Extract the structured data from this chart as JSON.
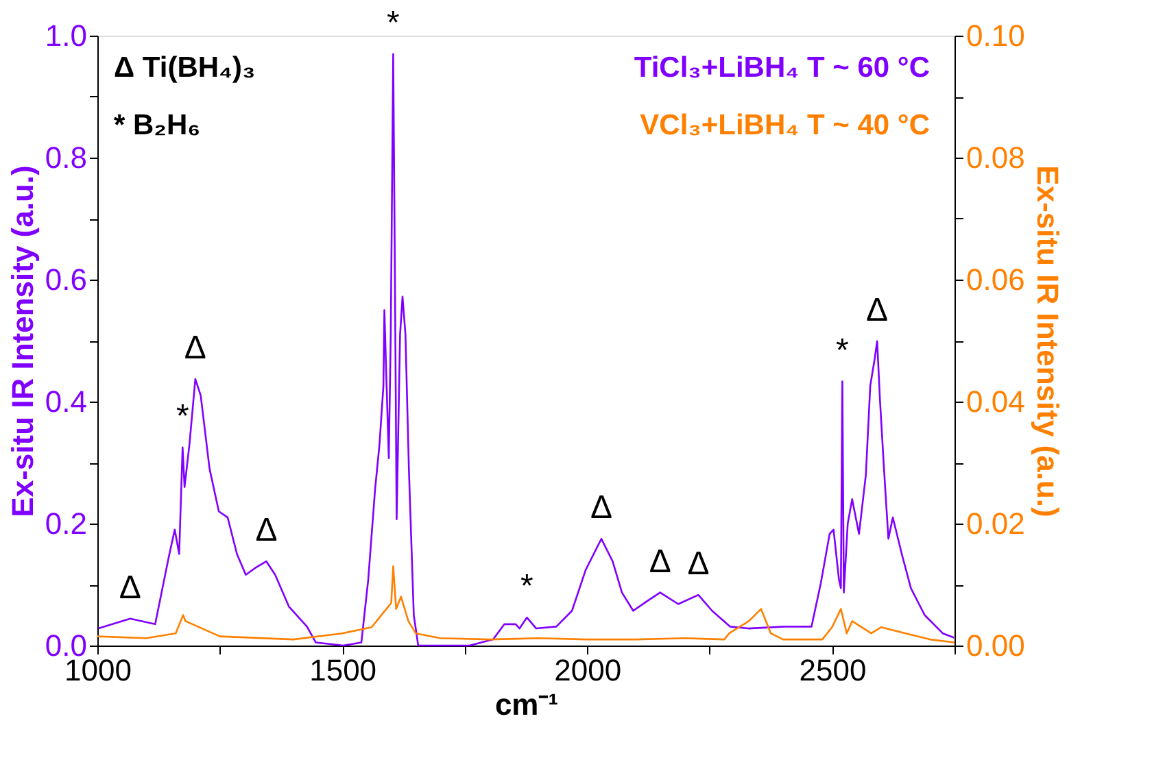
{
  "chart_data": {
    "type": "line",
    "xlabel": "cm⁻¹",
    "ylabel": "Ex-situ IR Intensity (a.u.)",
    "y2label": "Ex-situ IR Intensity (a.u.)",
    "xlim": [
      1000,
      2750
    ],
    "xticks": [
      1000,
      {
        "value": 1250,
        "label": null
      },
      1500,
      {
        "value": 1750,
        "label": null
      },
      2000,
      {
        "value": 2250,
        "label": null
      },
      2500,
      {
        "value": 2750,
        "label": null
      }
    ],
    "ylim": [
      0,
      1.0
    ],
    "yticks": [
      {
        "value": 0,
        "label": "0.0"
      },
      {
        "value": 0.1,
        "label": null
      },
      0.2,
      {
        "value": 0.3,
        "label": null
      },
      0.4,
      {
        "value": 0.5,
        "label": null
      },
      0.6,
      {
        "value": 0.7,
        "label": null
      },
      0.8,
      {
        "value": 0.9,
        "label": null
      },
      {
        "value": 1.0,
        "label": "1.0"
      }
    ],
    "y2lim": [
      0,
      0.1
    ],
    "y2ticks": [
      {
        "value": 0,
        "label": "0.00"
      },
      {
        "value": 0.01,
        "label": null
      },
      0.02,
      {
        "value": 0.03,
        "label": null
      },
      0.04,
      {
        "value": 0.05,
        "label": null
      },
      0.06,
      {
        "value": 0.07,
        "label": null
      },
      0.08,
      {
        "value": 0.09,
        "label": null
      },
      {
        "value": 0.1,
        "label": "0.10"
      }
    ],
    "legend": "top right",
    "grid": false,
    "series": [
      {
        "name": "TiCl₃+LiBH₄ T ~ 60 °C",
        "color": "#8000ff",
        "x": [
          1002,
          1067,
          1118,
          1146,
          1158,
          1167,
          1174,
          1178,
          1188,
          1200,
          1211,
          1229,
          1248,
          1266,
          1285,
          1303,
          1322,
          1345,
          1363,
          1391,
          1428,
          1446,
          1502,
          1539,
          1553,
          1567,
          1576,
          1584,
          1586,
          1590,
          1595,
          1599,
          1604,
          1607,
          1611,
          1618,
          1623,
          1629,
          1636,
          1646,
          1655,
          1700,
          1760,
          1808,
          1831,
          1854,
          1862,
          1877,
          1896,
          1937,
          1969,
          1997,
          2029,
          2052,
          2071,
          2094,
          2121,
          2149,
          2186,
          2227,
          2255,
          2292,
          2329,
          2403,
          2458,
          2477,
          2495,
          2503,
          2514,
          2518,
          2521,
          2524,
          2532,
          2541,
          2555,
          2569,
          2578,
          2587,
          2592,
          2598,
          2606,
          2615,
          2624,
          2643,
          2661,
          2689,
          2726,
          2749
        ],
        "values": [
          0.028,
          0.044,
          0.035,
          0.146,
          0.19,
          0.15,
          0.325,
          0.26,
          0.33,
          0.437,
          0.41,
          0.29,
          0.22,
          0.21,
          0.15,
          0.116,
          0.127,
          0.138,
          0.116,
          0.064,
          0.031,
          0.005,
          0.0,
          0.005,
          0.108,
          0.256,
          0.33,
          0.426,
          0.55,
          0.44,
          0.307,
          0.51,
          0.97,
          0.66,
          0.207,
          0.51,
          0.572,
          0.51,
          0.29,
          0.05,
          0.0,
          0.0,
          0.0,
          0.01,
          0.035,
          0.035,
          0.028,
          0.046,
          0.028,
          0.031,
          0.057,
          0.124,
          0.175,
          0.138,
          0.087,
          0.057,
          0.072,
          0.087,
          0.068,
          0.083,
          0.057,
          0.031,
          0.028,
          0.031,
          0.031,
          0.102,
          0.183,
          0.19,
          0.109,
          0.094,
          0.433,
          0.087,
          0.2,
          0.24,
          0.183,
          0.28,
          0.426,
          0.47,
          0.499,
          0.4,
          0.29,
          0.175,
          0.21,
          0.148,
          0.094,
          0.05,
          0.02,
          0.013
        ]
      },
      {
        "name": "VCl₃+LiBH₄ T ~ 40 °C",
        "color": "#ff8000",
        "axis": "y2",
        "x": [
          1000,
          1100,
          1160,
          1175,
          1180,
          1250,
          1400,
          1500,
          1560,
          1590,
          1600,
          1604,
          1610,
          1620,
          1635,
          1650,
          1700,
          1800,
          1900,
          2000,
          2100,
          2200,
          2280,
          2290,
          2330,
          2355,
          2375,
          2400,
          2480,
          2500,
          2518,
          2530,
          2541,
          2580,
          2600,
          2650,
          2700,
          2750
        ],
        "values": [
          0.0015,
          0.0012,
          0.002,
          0.005,
          0.004,
          0.0015,
          0.001,
          0.002,
          0.003,
          0.006,
          0.007,
          0.013,
          0.006,
          0.008,
          0.004,
          0.002,
          0.0012,
          0.001,
          0.0012,
          0.001,
          0.001,
          0.0012,
          0.001,
          0.002,
          0.004,
          0.006,
          0.002,
          0.001,
          0.001,
          0.003,
          0.006,
          0.002,
          0.004,
          0.002,
          0.003,
          0.002,
          0.001,
          0.0005
        ]
      }
    ],
    "annotations": [
      "Δ Ti(BH₄)₃",
      "* B₂H₆",
      {
        "text": "Δ",
        "x": 1067,
        "y": 0.044
      },
      {
        "text": "Δ",
        "x": 1200,
        "y": 0.437
      },
      {
        "text": "Δ",
        "x": 1345,
        "y": 0.138
      },
      {
        "text": "Δ",
        "x": 2029,
        "y": 0.175
      },
      {
        "text": "Δ",
        "x": 2149,
        "y": 0.087
      },
      {
        "text": "Δ",
        "x": 2227,
        "y": 0.083
      },
      {
        "text": "Δ",
        "x": 2592,
        "y": 0.499
      },
      {
        "text": "*",
        "x": 1174,
        "y": 0.325
      },
      {
        "text": "*",
        "x": 1604,
        "y": 0.97
      },
      {
        "text": "*",
        "x": 1877,
        "y": 0.046
      },
      {
        "text": "*",
        "x": 2521,
        "y": 0.433
      }
    ]
  }
}
